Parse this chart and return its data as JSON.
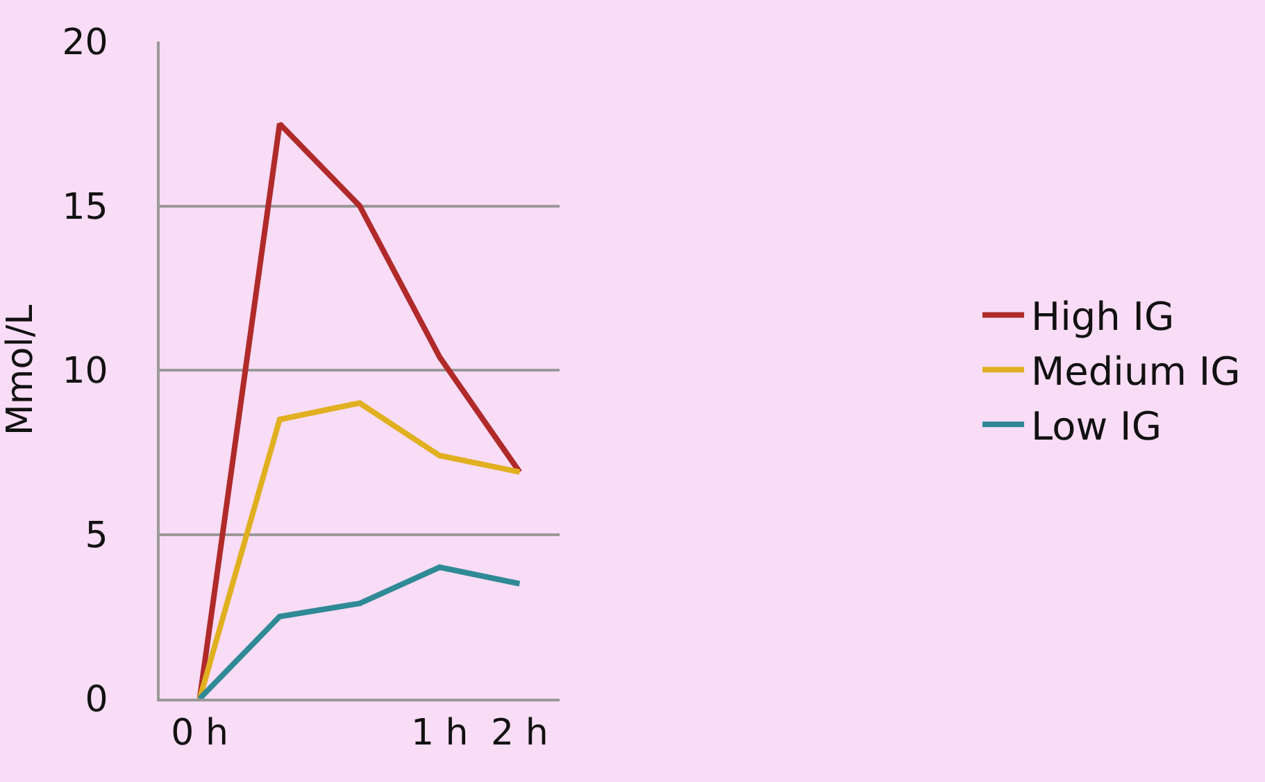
{
  "chart_data": {
    "type": "line",
    "ylabel": "Mmol/L",
    "categories": [
      "0 h",
      null,
      null,
      "1 h",
      "2 h"
    ],
    "series": [
      {
        "name": "High IG",
        "color": "#b02a2a",
        "values": [
          0,
          17.5,
          15.0,
          10.4,
          6.9
        ]
      },
      {
        "name": "Medium IG",
        "color": "#e0b020",
        "values": [
          0,
          8.5,
          9.0,
          7.4,
          6.9
        ]
      },
      {
        "name": "Low IG",
        "color": "#2f8a96",
        "values": [
          0,
          2.5,
          2.9,
          4.0,
          3.5
        ]
      }
    ],
    "ylim": [
      0,
      20
    ],
    "yticks": [
      0,
      5,
      10,
      15,
      20
    ],
    "grid": "y",
    "legend": "right",
    "marker": "none",
    "line_style": "solid"
  }
}
